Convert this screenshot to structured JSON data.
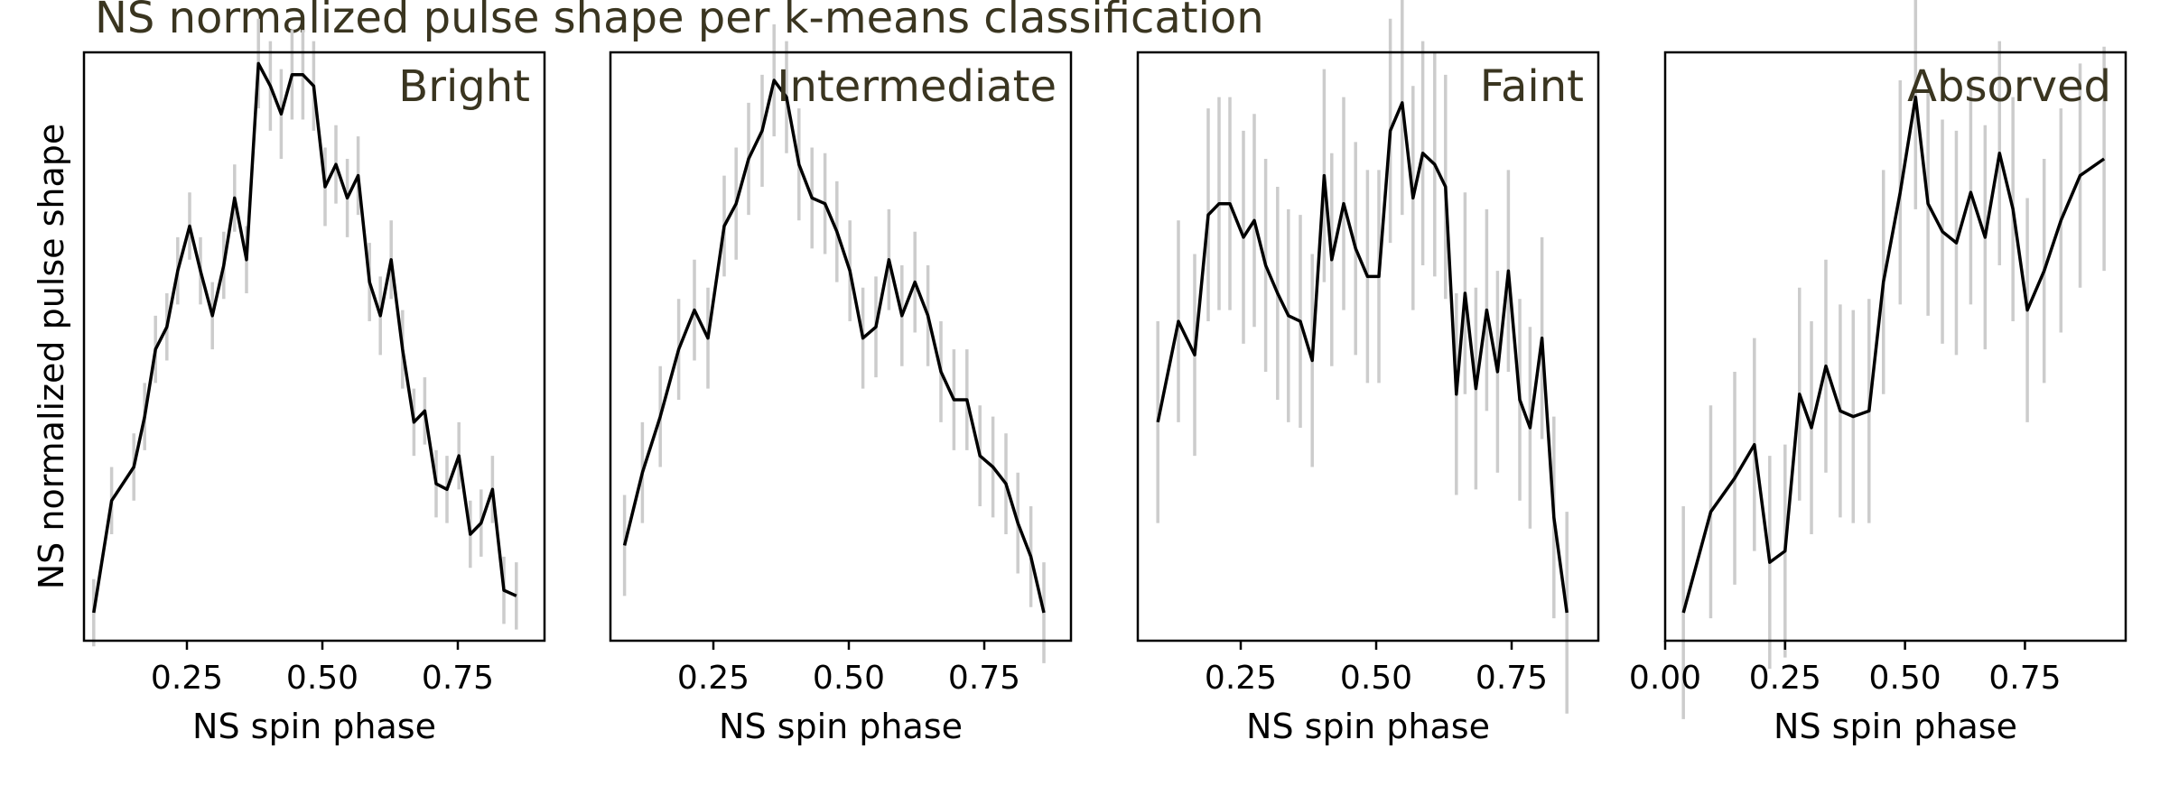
{
  "title": "NS normalized pulse shape per k-means classification",
  "shared_ylabel": "NS normalized pulse shape",
  "colors": {
    "line": "#000000",
    "errorbar": "#cccccc",
    "frame": "#000000",
    "text": "#3a3520"
  },
  "chart_data": [
    {
      "type": "line",
      "label": "Bright",
      "xlabel": "NS spin phase",
      "xlim": [
        0.06,
        0.91
      ],
      "ylim": [
        -0.5,
        10.0
      ],
      "xticks": [
        0.25,
        0.5,
        0.75
      ],
      "xtick_labels": [
        "0.25",
        "0.50",
        "0.75"
      ],
      "x": [
        0.078,
        0.111,
        0.152,
        0.172,
        0.192,
        0.213,
        0.233,
        0.255,
        0.275,
        0.297,
        0.318,
        0.338,
        0.36,
        0.382,
        0.404,
        0.424,
        0.444,
        0.464,
        0.484,
        0.505,
        0.525,
        0.546,
        0.566,
        0.587,
        0.607,
        0.627,
        0.648,
        0.669,
        0.689,
        0.71,
        0.73,
        0.752,
        0.773,
        0.793,
        0.814,
        0.835,
        0.858
      ],
      "y": [
        0.0,
        2.0,
        2.6,
        3.5,
        4.7,
        5.1,
        6.1,
        6.9,
        6.1,
        5.3,
        6.2,
        7.4,
        6.3,
        9.8,
        9.4,
        8.9,
        9.6,
        9.6,
        9.4,
        7.6,
        8.0,
        7.4,
        7.8,
        5.9,
        5.3,
        6.3,
        4.7,
        3.4,
        3.6,
        2.3,
        2.2,
        2.8,
        1.4,
        1.6,
        2.2,
        0.4,
        0.3
      ],
      "yerr": [
        0.6,
        0.6,
        0.6,
        0.6,
        0.6,
        0.6,
        0.6,
        0.6,
        0.6,
        0.6,
        0.6,
        0.6,
        0.6,
        0.8,
        0.8,
        0.8,
        0.8,
        0.8,
        0.8,
        0.7,
        0.7,
        0.7,
        0.7,
        0.7,
        0.7,
        0.7,
        0.7,
        0.6,
        0.6,
        0.6,
        0.6,
        0.6,
        0.6,
        0.6,
        0.6,
        0.6,
        0.6
      ]
    },
    {
      "type": "line",
      "label": "Intermediate",
      "xlabel": "NS spin phase",
      "xlim": [
        0.06,
        0.91
      ],
      "ylim": [
        -0.5,
        10.0
      ],
      "xticks": [
        0.25,
        0.5,
        0.75
      ],
      "xtick_labels": [
        "0.25",
        "0.50",
        "0.75"
      ],
      "x": [
        0.086,
        0.119,
        0.152,
        0.186,
        0.215,
        0.24,
        0.27,
        0.292,
        0.315,
        0.34,
        0.362,
        0.385,
        0.408,
        0.432,
        0.456,
        0.478,
        0.502,
        0.526,
        0.55,
        0.574,
        0.598,
        0.622,
        0.646,
        0.67,
        0.694,
        0.718,
        0.742,
        0.766,
        0.79,
        0.812,
        0.836,
        0.86
      ],
      "y": [
        1.2,
        2.5,
        3.5,
        4.7,
        5.4,
        4.9,
        6.9,
        7.3,
        8.1,
        8.6,
        9.5,
        9.2,
        8.0,
        7.4,
        7.3,
        6.8,
        6.1,
        4.9,
        5.1,
        6.3,
        5.3,
        5.9,
        5.3,
        4.3,
        3.8,
        3.8,
        2.8,
        2.6,
        2.3,
        1.6,
        1.0,
        0.0
      ],
      "yerr": [
        0.9,
        0.9,
        0.9,
        0.9,
        0.9,
        0.9,
        0.9,
        1.0,
        1.0,
        1.0,
        1.0,
        1.0,
        1.0,
        0.9,
        0.9,
        0.9,
        0.9,
        0.9,
        0.9,
        0.9,
        0.9,
        0.9,
        0.9,
        0.9,
        0.9,
        0.9,
        0.9,
        0.9,
        0.9,
        0.9,
        0.9,
        0.9
      ]
    },
    {
      "type": "line",
      "label": "Faint",
      "xlabel": "NS spin phase",
      "xlim": [
        0.06,
        0.91
      ],
      "ylim": [
        -0.5,
        10.0
      ],
      "xticks": [
        0.25,
        0.5,
        0.75
      ],
      "xtick_labels": [
        "0.25",
        "0.50",
        "0.75"
      ],
      "x": [
        0.097,
        0.135,
        0.165,
        0.19,
        0.21,
        0.23,
        0.255,
        0.275,
        0.296,
        0.318,
        0.338,
        0.36,
        0.382,
        0.404,
        0.418,
        0.44,
        0.462,
        0.484,
        0.505,
        0.526,
        0.548,
        0.568,
        0.586,
        0.608,
        0.628,
        0.648,
        0.664,
        0.684,
        0.704,
        0.724,
        0.744,
        0.765,
        0.784,
        0.806,
        0.828,
        0.852
      ],
      "y": [
        3.4,
        5.2,
        4.6,
        7.1,
        7.3,
        7.3,
        6.7,
        7.0,
        6.2,
        5.7,
        5.3,
        5.2,
        4.5,
        7.8,
        6.3,
        7.3,
        6.5,
        6.0,
        6.0,
        8.6,
        9.1,
        7.4,
        8.2,
        8.0,
        7.6,
        3.9,
        5.7,
        4.0,
        5.4,
        4.3,
        6.1,
        3.8,
        3.3,
        4.9,
        1.7,
        0.0
      ],
      "yerr": [
        1.8,
        1.8,
        1.8,
        1.9,
        1.9,
        1.9,
        1.9,
        1.9,
        1.9,
        1.9,
        1.9,
        1.9,
        1.9,
        1.9,
        1.9,
        1.9,
        1.9,
        1.9,
        1.9,
        2.0,
        2.0,
        2.0,
        2.0,
        2.0,
        2.0,
        1.8,
        1.8,
        1.8,
        1.8,
        1.8,
        1.8,
        1.8,
        1.8,
        1.8,
        1.8,
        1.8
      ]
    },
    {
      "type": "line",
      "label": "Absorved",
      "xlabel": "NS spin phase",
      "xlim": [
        0.0,
        0.96
      ],
      "ylim": [
        -0.5,
        10.0
      ],
      "xticks": [
        0.0,
        0.25,
        0.5,
        0.75
      ],
      "xtick_labels": [
        "0.00",
        "0.25",
        "0.50",
        "0.75"
      ],
      "x": [
        0.038,
        0.095,
        0.145,
        0.186,
        0.218,
        0.25,
        0.28,
        0.305,
        0.335,
        0.365,
        0.392,
        0.425,
        0.455,
        0.49,
        0.522,
        0.548,
        0.578,
        0.607,
        0.637,
        0.667,
        0.697,
        0.725,
        0.755,
        0.79,
        0.825,
        0.865,
        0.915
      ],
      "y": [
        0.0,
        1.8,
        2.4,
        3.0,
        0.9,
        1.1,
        3.9,
        3.3,
        4.4,
        3.6,
        3.5,
        3.6,
        5.9,
        7.5,
        9.2,
        7.3,
        6.8,
        6.6,
        7.5,
        6.7,
        8.2,
        7.2,
        5.4,
        6.1,
        7.0,
        7.8,
        8.1
      ],
      "yerr": [
        1.9,
        1.9,
        1.9,
        1.9,
        1.9,
        1.9,
        1.9,
        1.9,
        1.9,
        1.9,
        1.9,
        2.0,
        2.0,
        2.0,
        2.0,
        2.0,
        2.0,
        2.0,
        2.0,
        2.0,
        2.0,
        2.0,
        2.0,
        2.0,
        2.0,
        2.0,
        2.0
      ]
    }
  ]
}
